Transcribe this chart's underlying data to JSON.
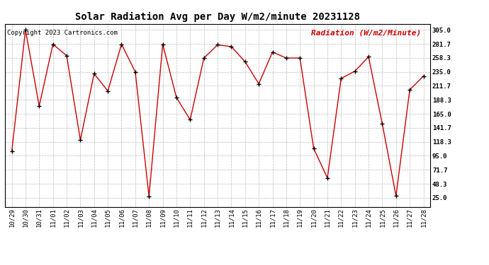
{
  "title": "Solar Radiation Avg per Day W/m2/minute 20231128",
  "copyright": "Copyright 2023 Cartronics.com",
  "legend_label": "Radiation (W/m2/Minute)",
  "background_color": "#ffffff",
  "plot_bg_color": "#ffffff",
  "line_color": "#cc0000",
  "marker_color": "#000000",
  "grid_color": "#bbbbbb",
  "dates": [
    "10/29",
    "10/30",
    "10/31",
    "11/01",
    "11/02",
    "11/03",
    "11/04",
    "11/05",
    "11/06",
    "11/07",
    "11/08",
    "11/09",
    "11/10",
    "11/11",
    "11/12",
    "11/13",
    "11/14",
    "11/15",
    "11/16",
    "11/17",
    "11/18",
    "11/19",
    "11/20",
    "11/21",
    "11/22",
    "11/23",
    "11/24",
    "11/25",
    "11/26",
    "11/27",
    "11/28"
  ],
  "values": [
    102,
    305,
    178,
    281,
    262,
    121,
    232,
    203,
    281,
    235,
    27,
    281,
    192,
    155,
    258,
    280,
    277,
    252,
    215,
    268,
    258,
    258,
    107,
    58,
    224,
    236,
    260,
    148,
    28,
    205,
    228
  ],
  "yticks": [
    25.0,
    48.3,
    71.7,
    95.0,
    118.3,
    141.7,
    165.0,
    188.3,
    211.7,
    235.0,
    258.3,
    281.7,
    305.0
  ],
  "ylim": [
    10.0,
    315.0
  ],
  "title_fontsize": 10,
  "copyright_fontsize": 6.5,
  "legend_fontsize": 8,
  "tick_fontsize": 6.5,
  "marker_size": 4
}
